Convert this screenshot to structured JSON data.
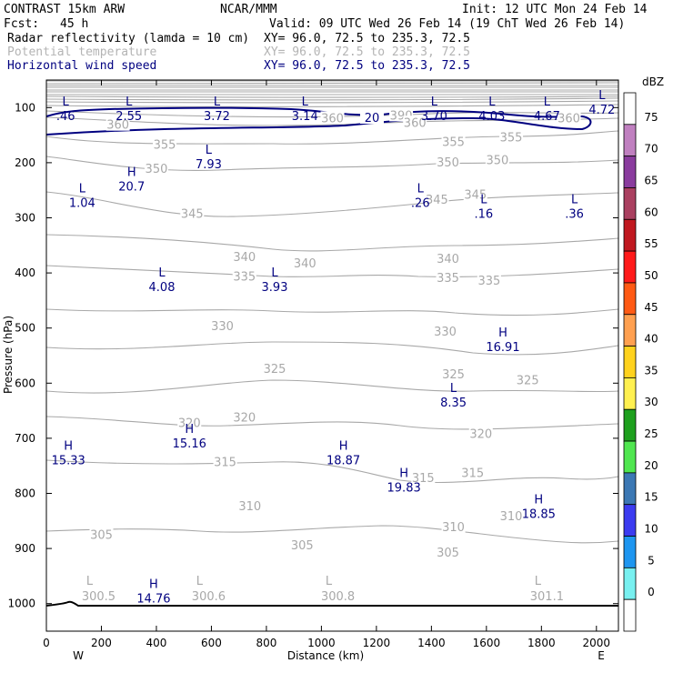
{
  "header": {
    "model": "CONTRAST 15km ARW",
    "org": "NCAR/MMM",
    "init": "Init: 12 UTC Mon 24 Feb 14",
    "fcst_label": "Fcst:",
    "fcst_value": "45 h",
    "valid": "Valid: 09 UTC Wed 26 Feb 14 (19 ChT Wed 26 Feb 14)",
    "fields": [
      {
        "name": "Radar reflectivity (lamda = 10 cm)",
        "xy": "XY=  96.0, 72.5 to 235.3, 72.5",
        "color": "#000000"
      },
      {
        "name": "Potential temperature",
        "xy": "XY=  96.0, 72.5 to 235.3, 72.5",
        "color": "#b4b4b4"
      },
      {
        "name": "Horizontal wind speed",
        "xy": "XY=  96.0, 72.5 to 235.3, 72.5",
        "color": "#000080"
      }
    ]
  },
  "chart_data": {
    "type": "cross-section contour",
    "xlabel": "Distance (km)",
    "ylabel": "Pressure (hPa)",
    "xlim": [
      0,
      2080
    ],
    "ylim": [
      1050,
      50
    ],
    "x_ticks": [
      "0",
      "200",
      "400",
      "600",
      "800",
      "1000",
      "1200",
      "1400",
      "1600",
      "1800",
      "2000"
    ],
    "y_ticks": [
      "100",
      "200",
      "300",
      "400",
      "500",
      "600",
      "700",
      "800",
      "900",
      "1000"
    ],
    "x_ends": {
      "left": "W",
      "right": "E"
    },
    "theta_labels": [
      {
        "text": "390",
        "x": 1290,
        "p": 115
      },
      {
        "text": "360",
        "x": 260,
        "p": 132
      },
      {
        "text": "360",
        "x": 1040,
        "p": 120
      },
      {
        "text": "360",
        "x": 1340,
        "p": 128
      },
      {
        "text": "360",
        "x": 1900,
        "p": 120
      },
      {
        "text": "355",
        "x": 430,
        "p": 168
      },
      {
        "text": "355",
        "x": 1480,
        "p": 163
      },
      {
        "text": "355",
        "x": 1690,
        "p": 155
      },
      {
        "text": "350",
        "x": 400,
        "p": 212
      },
      {
        "text": "350",
        "x": 1460,
        "p": 200
      },
      {
        "text": "350",
        "x": 1640,
        "p": 196
      },
      {
        "text": "345",
        "x": 530,
        "p": 293
      },
      {
        "text": "345",
        "x": 1420,
        "p": 268
      },
      {
        "text": "345",
        "x": 1560,
        "p": 259
      },
      {
        "text": "340",
        "x": 720,
        "p": 372
      },
      {
        "text": "340",
        "x": 940,
        "p": 383
      },
      {
        "text": "340",
        "x": 1460,
        "p": 375
      },
      {
        "text": "335",
        "x": 720,
        "p": 407
      },
      {
        "text": "335",
        "x": 1460,
        "p": 410
      },
      {
        "text": "335",
        "x": 1610,
        "p": 415
      },
      {
        "text": "330",
        "x": 640,
        "p": 497
      },
      {
        "text": "330",
        "x": 1450,
        "p": 507
      },
      {
        "text": "325",
        "x": 830,
        "p": 575
      },
      {
        "text": "325",
        "x": 1480,
        "p": 585
      },
      {
        "text": "325",
        "x": 1750,
        "p": 595
      },
      {
        "text": "320",
        "x": 520,
        "p": 673
      },
      {
        "text": "320",
        "x": 720,
        "p": 663
      },
      {
        "text": "320",
        "x": 1580,
        "p": 693
      },
      {
        "text": "315",
        "x": 650,
        "p": 744
      },
      {
        "text": "315",
        "x": 1370,
        "p": 773
      },
      {
        "text": "315",
        "x": 1550,
        "p": 764
      },
      {
        "text": "310",
        "x": 740,
        "p": 824
      },
      {
        "text": "310",
        "x": 1480,
        "p": 862
      },
      {
        "text": "310",
        "x": 1690,
        "p": 842
      },
      {
        "text": "305",
        "x": 200,
        "p": 876
      },
      {
        "text": "305",
        "x": 930,
        "p": 895
      },
      {
        "text": "305",
        "x": 1460,
        "p": 908
      }
    ],
    "extrema_theta": [
      {
        "type": "L",
        "value": "300.5",
        "x": 190
      },
      {
        "type": "L",
        "value": "300.6",
        "x": 590
      },
      {
        "type": "L",
        "value": "300.8",
        "x": 1060
      },
      {
        "type": "L",
        "value": "301.1",
        "x": 1820
      }
    ],
    "extrema_wind": [
      {
        "type": "L",
        "value": ".46",
        "x": 70,
        "p": 103
      },
      {
        "type": "L",
        "value": "2.55",
        "x": 300,
        "p": 103
      },
      {
        "type": "L",
        "value": "3.72",
        "x": 620,
        "p": 103
      },
      {
        "type": "L",
        "value": "3.14",
        "x": 940,
        "p": 103
      },
      {
        "type": "L",
        "value": "3.70",
        "x": 1410,
        "p": 103
      },
      {
        "type": "L",
        "value": "4.03",
        "x": 1620,
        "p": 103
      },
      {
        "type": "L",
        "value": "4.67",
        "x": 1820,
        "p": 103
      },
      {
        "type": "L",
        "value": "4.72",
        "x": 2020,
        "p": 91
      },
      {
        "type": "L",
        "value": "7.93",
        "x": 590,
        "p": 190
      },
      {
        "type": "H",
        "value": "20.7",
        "x": 310,
        "p": 231
      },
      {
        "type": "L",
        "value": "1.04",
        "x": 130,
        "p": 260
      },
      {
        "type": "L",
        "value": ".26",
        "x": 1360,
        "p": 260
      },
      {
        "type": "L",
        "value": ".16",
        "x": 1590,
        "p": 280
      },
      {
        "type": "L",
        "value": ".36",
        "x": 1920,
        "p": 280
      },
      {
        "type": "L",
        "value": "4.08",
        "x": 420,
        "p": 413
      },
      {
        "type": "L",
        "value": "3.93",
        "x": 830,
        "p": 413
      },
      {
        "type": "H",
        "value": "16.91",
        "x": 1660,
        "p": 522
      },
      {
        "type": "L",
        "value": "8.35",
        "x": 1480,
        "p": 623
      },
      {
        "type": "H",
        "value": "15.16",
        "x": 520,
        "p": 697
      },
      {
        "type": "H",
        "value": "15.33",
        "x": 80,
        "p": 727
      },
      {
        "type": "H",
        "value": "18.87",
        "x": 1080,
        "p": 727
      },
      {
        "type": "H",
        "value": "19.83",
        "x": 1300,
        "p": 777
      },
      {
        "type": "H",
        "value": "18.85",
        "x": 1790,
        "p": 825
      },
      {
        "type": "H",
        "value": "14.76",
        "x": 390,
        "p": 978
      }
    ],
    "wind_contour_label": "20",
    "colorbar": {
      "unit": "dBZ",
      "levels": [
        "75",
        "70",
        "65",
        "60",
        "55",
        "50",
        "45",
        "40",
        "35",
        "30",
        "25",
        "20",
        "15",
        "10",
        "5",
        "0"
      ],
      "colors": [
        "#ffffff",
        "#c080c0",
        "#8a3c9e",
        "#aa4060",
        "#c01820",
        "#ff1a1a",
        "#ff5a14",
        "#ffa050",
        "#ffd21e",
        "#fff050",
        "#1ea01e",
        "#50e650",
        "#3c78b4",
        "#3c3cf0",
        "#1e96f0",
        "#78f0f0",
        "#ffffff"
      ]
    }
  }
}
